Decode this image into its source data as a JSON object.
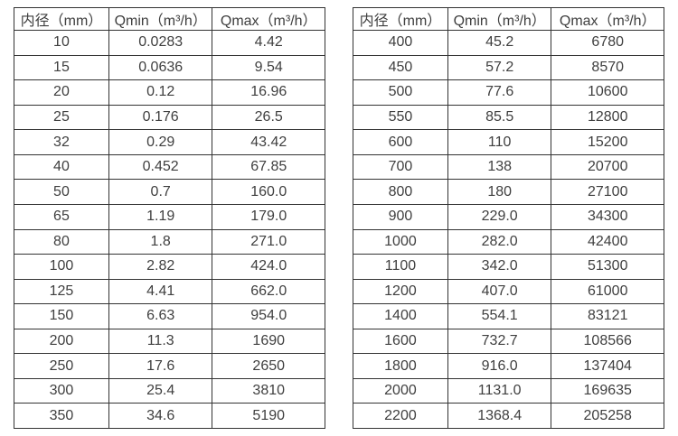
{
  "page": {
    "background": "#ffffff",
    "border_color": "#333333",
    "text_color": "#3f3f3f"
  },
  "tables": [
    {
      "name": "flow-rate-table-small-diameters",
      "headers": [
        "内径（mm）",
        "Qmin（m³/h）",
        "Qmax（m³/h）"
      ],
      "rows": [
        [
          "10",
          "0.0283",
          "4.42"
        ],
        [
          "15",
          "0.0636",
          "9.54"
        ],
        [
          "20",
          "0.12",
          "16.96"
        ],
        [
          "25",
          "0.176",
          "26.5"
        ],
        [
          "32",
          "0.29",
          "43.42"
        ],
        [
          "40",
          "0.452",
          "67.85"
        ],
        [
          "50",
          "0.7",
          "160.0"
        ],
        [
          "65",
          "1.19",
          "179.0"
        ],
        [
          "80",
          "1.8",
          "271.0"
        ],
        [
          "100",
          "2.82",
          "424.0"
        ],
        [
          "125",
          "4.41",
          "662.0"
        ],
        [
          "150",
          "6.63",
          "954.0"
        ],
        [
          "200",
          "11.3",
          "1690"
        ],
        [
          "250",
          "17.6",
          "2650"
        ],
        [
          "300",
          "25.4",
          "3810"
        ],
        [
          "350",
          "34.6",
          "5190"
        ]
      ]
    },
    {
      "name": "flow-rate-table-large-diameters",
      "headers": [
        "内径（mm）",
        "Qmin（m³/h）",
        "Qmax（m³/h）"
      ],
      "rows": [
        [
          "400",
          "45.2",
          "6780"
        ],
        [
          "450",
          "57.2",
          "8570"
        ],
        [
          "500",
          "77.6",
          "10600"
        ],
        [
          "550",
          "85.5",
          "12800"
        ],
        [
          "600",
          "110",
          "15200"
        ],
        [
          "700",
          "138",
          "20700"
        ],
        [
          "800",
          "180",
          "27100"
        ],
        [
          "900",
          "229.0",
          "34300"
        ],
        [
          "1000",
          "282.0",
          "42400"
        ],
        [
          "1100",
          "342.0",
          "51300"
        ],
        [
          "1200",
          "407.0",
          "61000"
        ],
        [
          "1400",
          "554.1",
          "83121"
        ],
        [
          "1600",
          "732.7",
          "108566"
        ],
        [
          "1800",
          "916.0",
          "137404"
        ],
        [
          "2000",
          "1131.0",
          "169635"
        ],
        [
          "2200",
          "1368.4",
          "205258"
        ]
      ]
    }
  ]
}
